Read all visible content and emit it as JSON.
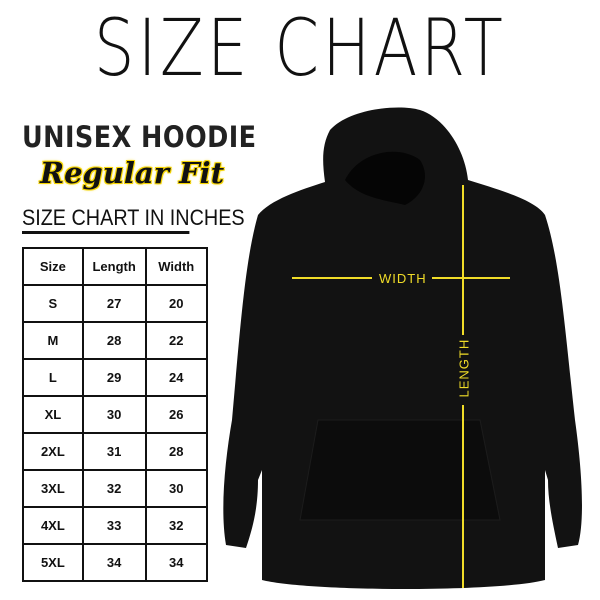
{
  "title": "SIZE CHART",
  "subtitle": "UNISEX HOODIE",
  "fit": "Regular Fit",
  "units_heading": "SIZE CHART IN INCHES",
  "table": {
    "headers": [
      "Size",
      "Length",
      "Width"
    ],
    "rows": [
      [
        "S",
        "27",
        "20"
      ],
      [
        "M",
        "28",
        "22"
      ],
      [
        "L",
        "29",
        "24"
      ],
      [
        "XL",
        "30",
        "26"
      ],
      [
        "2XL",
        "31",
        "28"
      ],
      [
        "3XL",
        "32",
        "30"
      ],
      [
        "4XL",
        "33",
        "32"
      ],
      [
        "5XL",
        "34",
        "34"
      ]
    ]
  },
  "measure_labels": {
    "width": "WIDTH",
    "length": "LENGTH"
  },
  "colors": {
    "accent": "#f0dc28",
    "garment": "#111111"
  }
}
